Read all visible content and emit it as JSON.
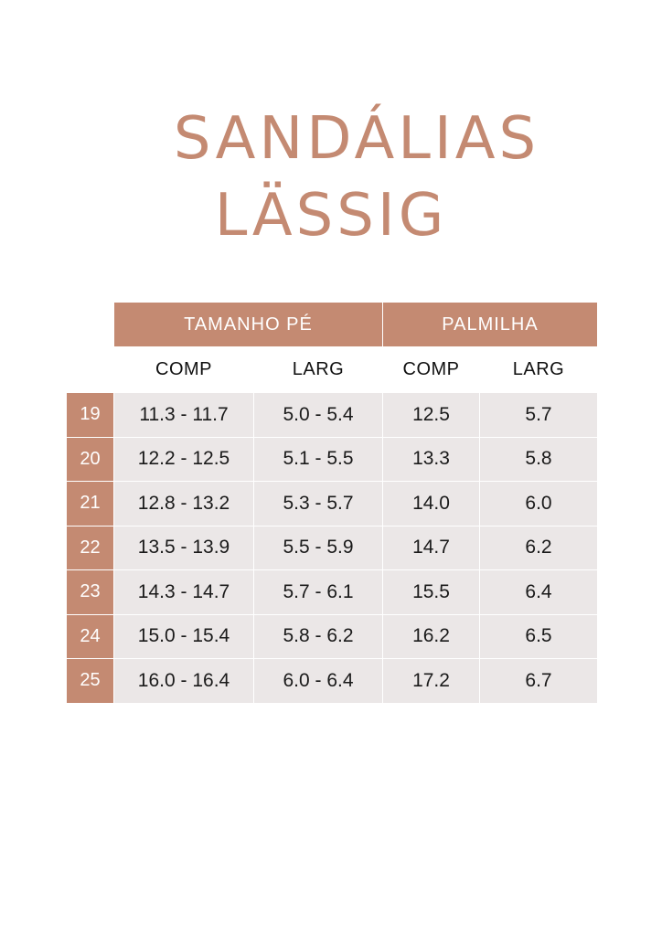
{
  "title": {
    "line1": "SANDÁLIAS",
    "line2": "LÄSSIG"
  },
  "table": {
    "group_headers": [
      "TAMANHO PÉ",
      "PALMILHA"
    ],
    "sub_headers": [
      "COMP",
      "LARG",
      "COMP",
      "LARG"
    ],
    "rows": [
      {
        "size": "19",
        "pe_comp": "11.3 - 11.7",
        "pe_larg": "5.0 - 5.4",
        "palm_comp": "12.5",
        "palm_larg": "5.7"
      },
      {
        "size": "20",
        "pe_comp": "12.2 - 12.5",
        "pe_larg": "5.1 - 5.5",
        "palm_comp": "13.3",
        "palm_larg": "5.8"
      },
      {
        "size": "21",
        "pe_comp": "12.8 - 13.2",
        "pe_larg": "5.3 - 5.7",
        "palm_comp": "14.0",
        "palm_larg": "6.0"
      },
      {
        "size": "22",
        "pe_comp": "13.5 - 13.9",
        "pe_larg": "5.5 - 5.9",
        "palm_comp": "14.7",
        "palm_larg": "6.2"
      },
      {
        "size": "23",
        "pe_comp": "14.3 - 14.7",
        "pe_larg": "5.7 - 6.1",
        "palm_comp": "15.5",
        "palm_larg": "6.4"
      },
      {
        "size": "24",
        "pe_comp": "15.0 - 15.4",
        "pe_larg": "5.8 - 6.2",
        "palm_comp": "16.2",
        "palm_larg": "6.5"
      },
      {
        "size": "25",
        "pe_comp": "16.0 - 16.4",
        "pe_larg": "6.0 - 6.4",
        "palm_comp": "17.2",
        "palm_larg": "6.7"
      }
    ]
  },
  "colors": {
    "accent": "#c48a72",
    "cell_bg": "#ebe7e7",
    "text": "#1a1a1a"
  }
}
